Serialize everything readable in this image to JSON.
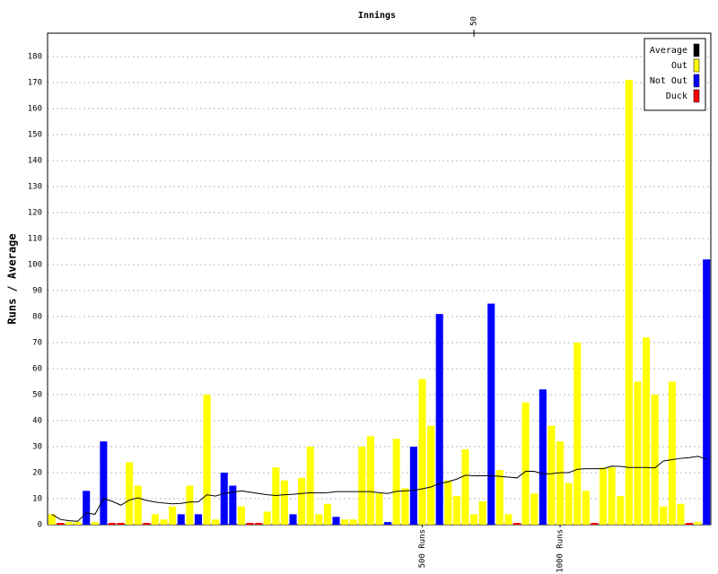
{
  "chart_data": {
    "type": "bar",
    "title": "Innings",
    "y_label": "Runs / Average",
    "x": [
      1,
      2,
      3,
      4,
      5,
      6,
      7,
      8,
      9,
      10,
      11,
      12,
      13,
      14,
      15,
      16,
      17,
      18,
      19,
      20,
      21,
      22,
      23,
      24,
      25,
      26,
      27,
      28,
      29,
      30,
      31,
      32,
      33,
      34,
      35,
      36,
      37,
      38,
      39,
      40,
      41,
      42,
      43,
      44,
      45,
      46,
      47,
      48,
      49,
      50,
      51,
      52,
      53,
      54,
      55,
      56,
      57,
      58,
      59,
      60,
      61,
      62,
      63,
      64,
      65,
      66,
      67,
      68,
      69,
      70,
      71,
      72,
      73,
      74,
      75,
      76,
      77
    ],
    "xlim": [
      0.5,
      77.5
    ],
    "xticks": [
      50
    ],
    "markers": [
      {
        "value": 44,
        "label": "500 Runs"
      },
      {
        "value": 60,
        "label": "1000 Runs"
      }
    ],
    "ylim": [
      0,
      189
    ],
    "yticks": [
      0,
      10,
      20,
      30,
      40,
      50,
      60,
      70,
      80,
      90,
      100,
      110,
      120,
      130,
      140,
      150,
      160,
      170,
      180
    ],
    "grid": true,
    "legend": "top-right",
    "series": [
      {
        "name": "Average",
        "type": "line",
        "color": "#000000",
        "values": [
          4,
          2,
          1.5,
          1.3,
          4.5,
          4,
          10,
          9,
          7.5,
          9.5,
          10.3,
          9.3,
          8.7,
          8.3,
          8,
          8.2,
          8.7,
          8.8,
          11.5,
          11,
          12,
          12.5,
          13,
          12.5,
          12,
          11.5,
          11.2,
          11.5,
          11.7,
          12,
          12.3,
          12.2,
          12.3,
          12.7,
          12.7,
          12.7,
          12.7,
          12.7,
          12.3,
          12,
          12.8,
          13,
          13.2,
          13.8,
          14.5,
          15.8,
          16.5,
          17.5,
          19,
          18.8,
          18.8,
          18.8,
          18.6,
          18.3,
          18,
          20.5,
          20.5,
          19.5,
          19.6,
          20,
          20,
          21.3,
          21.5,
          21.5,
          21.5,
          22.5,
          22.4,
          22,
          22,
          22,
          21.8,
          24.5,
          25,
          25.5,
          25.8,
          26.3,
          25.2
        ]
      },
      {
        "name": "Out",
        "color": "#ffff00",
        "values": [
          4,
          null,
          1,
          1,
          null,
          1,
          null,
          null,
          null,
          24,
          15,
          null,
          4,
          2,
          7,
          null,
          15,
          null,
          50,
          2,
          null,
          null,
          7,
          null,
          null,
          5,
          22,
          17,
          null,
          18,
          30,
          4,
          8,
          null,
          2,
          2,
          30,
          34,
          12,
          null,
          33,
          14,
          null,
          56,
          38,
          null,
          17,
          11,
          29,
          4,
          9,
          null,
          21,
          4,
          null,
          47,
          12,
          null,
          38,
          32,
          16,
          70,
          13,
          null,
          22,
          22,
          11,
          171,
          55,
          72,
          50,
          7,
          55,
          8,
          null,
          1,
          null
        ]
      },
      {
        "name": "Not Out",
        "color": "#0000ff",
        "values": [
          null,
          null,
          null,
          null,
          13,
          null,
          32,
          null,
          null,
          null,
          null,
          null,
          null,
          null,
          null,
          4,
          null,
          4,
          null,
          null,
          20,
          15,
          null,
          null,
          null,
          null,
          null,
          null,
          4,
          null,
          null,
          null,
          null,
          3,
          null,
          null,
          null,
          null,
          null,
          1,
          null,
          null,
          30,
          null,
          null,
          81,
          null,
          null,
          null,
          null,
          null,
          85,
          null,
          null,
          null,
          null,
          null,
          52,
          null,
          null,
          null,
          null,
          null,
          null,
          null,
          null,
          null,
          null,
          null,
          null,
          null,
          null,
          null,
          null,
          null,
          null,
          102
        ]
      },
      {
        "name": "Duck",
        "color": "#ff0000",
        "values": [
          null,
          0,
          null,
          null,
          null,
          null,
          null,
          0,
          0,
          null,
          null,
          0,
          null,
          null,
          null,
          null,
          null,
          null,
          null,
          null,
          null,
          null,
          null,
          0,
          0,
          null,
          null,
          null,
          null,
          null,
          null,
          null,
          null,
          null,
          null,
          null,
          null,
          null,
          null,
          null,
          null,
          null,
          null,
          null,
          null,
          null,
          null,
          null,
          null,
          null,
          null,
          null,
          null,
          null,
          0,
          null,
          null,
          null,
          null,
          null,
          null,
          null,
          null,
          0,
          null,
          null,
          null,
          null,
          null,
          null,
          null,
          null,
          null,
          null,
          0,
          null,
          null
        ]
      }
    ]
  }
}
